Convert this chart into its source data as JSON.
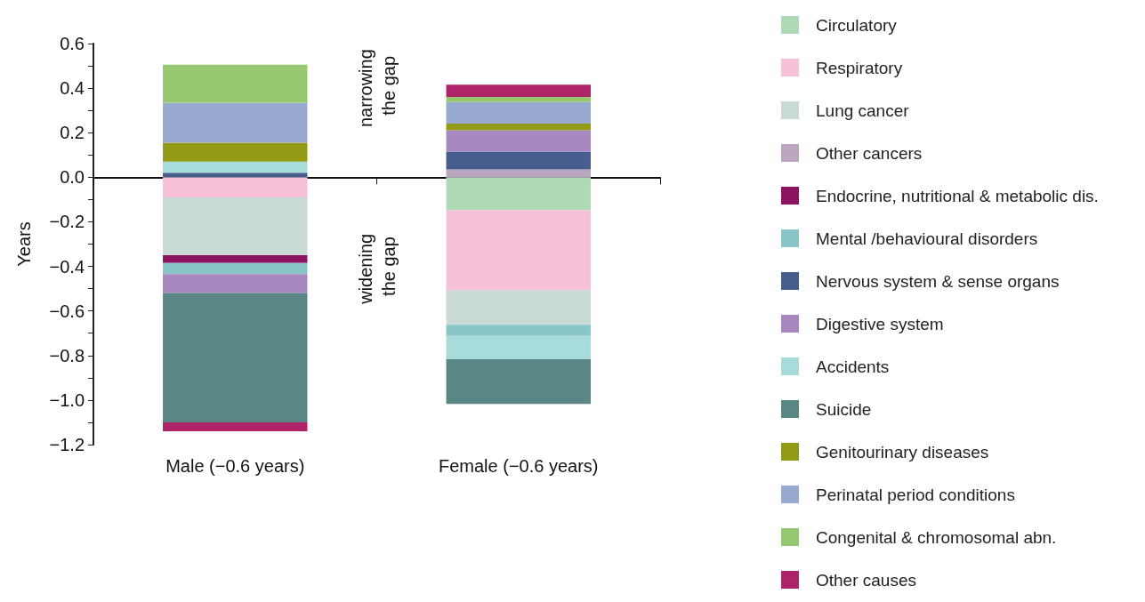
{
  "chart_data": {
    "type": "bar",
    "stacked": true,
    "ylabel": "Years",
    "categories": [
      "Male (−0.6 years)",
      "Female (−0.6 years)"
    ],
    "ylim": [
      -1.2,
      0.6
    ],
    "yticks": [
      {
        "value": -1.2,
        "label": "−1.2"
      },
      {
        "value": -1.1,
        "label": null
      },
      {
        "value": -1.0,
        "label": "−1.0"
      },
      {
        "value": -0.9,
        "label": null
      },
      {
        "value": -0.8,
        "label": "−0.8"
      },
      {
        "value": -0.7,
        "label": null
      },
      {
        "value": -0.6,
        "label": "−0.6"
      },
      {
        "value": -0.5,
        "label": null
      },
      {
        "value": -0.4,
        "label": "−0.4"
      },
      {
        "value": -0.3,
        "label": null
      },
      {
        "value": -0.2,
        "label": "−0.2"
      },
      {
        "value": -0.1,
        "label": null
      },
      {
        "value": 0,
        "label": "0.0"
      },
      {
        "value": 0.1,
        "label": null
      },
      {
        "value": 0.2,
        "label": "0.2"
      },
      {
        "value": 0.3,
        "label": null
      },
      {
        "value": 0.4,
        "label": "0.4"
      },
      {
        "value": 0.5,
        "label": null
      },
      {
        "value": 0.6,
        "label": "0.6"
      }
    ],
    "series": [
      {
        "name": "Circulatory",
        "color": "#afdab6",
        "values": [
          null,
          -0.147
        ]
      },
      {
        "name": "Respiratory",
        "color": "#f7c0d9",
        "values": [
          -0.09,
          -0.36
        ]
      },
      {
        "name": "Lung cancer",
        "color": "#c9dad7",
        "values": [
          -0.26,
          -0.155
        ]
      },
      {
        "name": "Other cancers",
        "color": "#bba5bf",
        "values": [
          null,
          0.035
        ]
      },
      {
        "name": "Endocrine, nutritional & metabolic dis.",
        "color": "#8c1262",
        "values": [
          -0.035,
          null
        ]
      },
      {
        "name": "Mental /behavioural disorders",
        "color": "#88c6c7",
        "values": [
          -0.05,
          -0.05
        ]
      },
      {
        "name": "Nervous system & sense organs",
        "color": "#465d8e",
        "values": [
          0.02,
          0.08
        ]
      },
      {
        "name": "Digestive system",
        "color": "#a987c0",
        "values": [
          -0.085,
          0.096
        ]
      },
      {
        "name": "Accidents",
        "color": "#a7dcda",
        "values": [
          0.05,
          -0.105
        ]
      },
      {
        "name": "Suicide",
        "color": "#5a8786",
        "values": [
          -0.58,
          -0.2
        ]
      },
      {
        "name": "Genitourinary diseases",
        "color": "#939a15",
        "values": [
          0.085,
          0.03
        ]
      },
      {
        "name": "Perinatal period conditions",
        "color": "#98aacf",
        "values": [
          0.18,
          0.097
        ]
      },
      {
        "name": "Congenital & chromosomal abn.",
        "color": "#95c870",
        "values": [
          0.17,
          0.023
        ]
      },
      {
        "name": "Other causes",
        "color": "#ae2369",
        "values": [
          -0.04,
          0.054
        ]
      }
    ],
    "annotations": [
      "narrowing the gap",
      "widening the gap"
    ],
    "legend": "right"
  }
}
